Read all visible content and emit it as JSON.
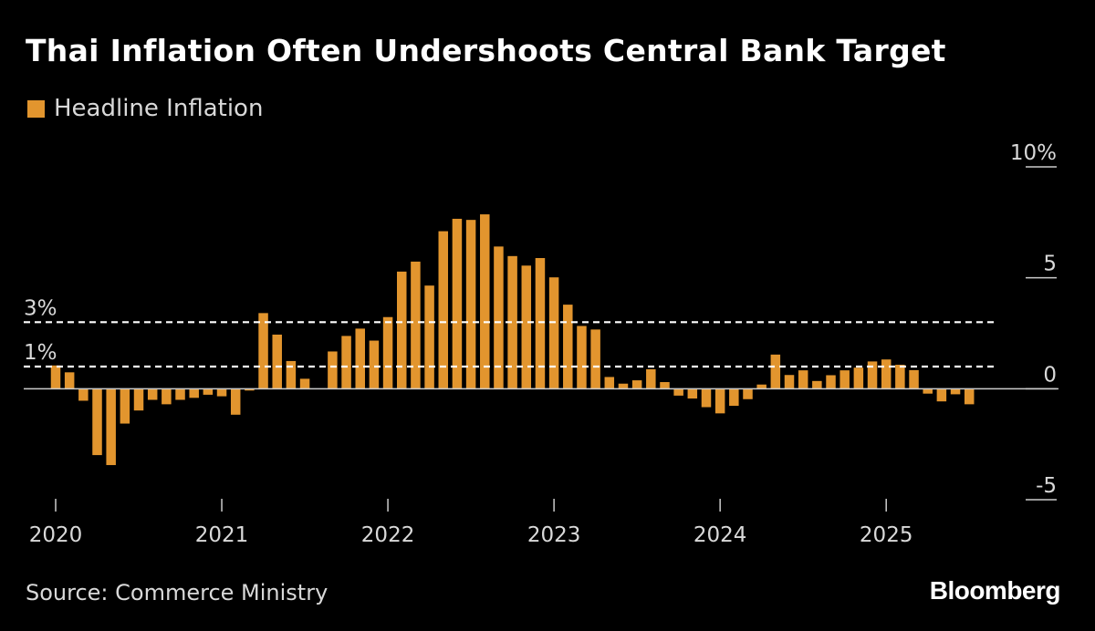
{
  "title": "Thai Inflation Often Undershoots Central Bank Target",
  "legend": {
    "label": "Headline Inflation",
    "color": "#e2952e"
  },
  "source": "Source: Commerce Ministry",
  "brand": "Bloomberg",
  "chart_data": {
    "type": "bar",
    "series": [
      {
        "name": "Headline Inflation",
        "color": "#e2952e",
        "start": "2020-01",
        "values": [
          1.05,
          0.74,
          -0.54,
          -2.99,
          -3.44,
          -1.57,
          -0.98,
          -0.5,
          -0.7,
          -0.5,
          -0.41,
          -0.27,
          -0.34,
          -1.17,
          -0.08,
          3.41,
          2.44,
          1.25,
          0.45,
          -0.02,
          1.68,
          2.38,
          2.71,
          2.17,
          3.23,
          5.28,
          5.73,
          4.65,
          7.1,
          7.66,
          7.61,
          7.86,
          6.41,
          5.98,
          5.55,
          5.89,
          5.02,
          3.79,
          2.83,
          2.67,
          0.53,
          0.23,
          0.38,
          0.88,
          0.3,
          -0.31,
          -0.44,
          -0.83,
          -1.11,
          -0.77,
          -0.47,
          0.19,
          1.54,
          0.62,
          0.83,
          0.35,
          0.61,
          0.83,
          0.95,
          1.23,
          1.32,
          1.08,
          0.84,
          -0.22,
          -0.57,
          -0.25,
          -0.7
        ]
      }
    ],
    "x_ticks": [
      "2020",
      "2021",
      "2022",
      "2023",
      "2024",
      "2025"
    ],
    "y_ticks": [
      10,
      5,
      0,
      -5
    ],
    "y_tick_labels": [
      "10%",
      "5",
      "0",
      "-5"
    ],
    "ylim": [
      -5,
      10
    ],
    "reference_lines": [
      {
        "value": 3,
        "label": "3%",
        "style": "dashed"
      },
      {
        "value": 1,
        "label": "1%",
        "style": "dashed"
      }
    ],
    "title": "Thai Inflation Often Undershoots Central Bank Target",
    "xlabel": "",
    "ylabel": "",
    "legend_position": "top-left",
    "grid": false,
    "axis_color": "#cccccc",
    "text_color": "#d9d9d9"
  }
}
